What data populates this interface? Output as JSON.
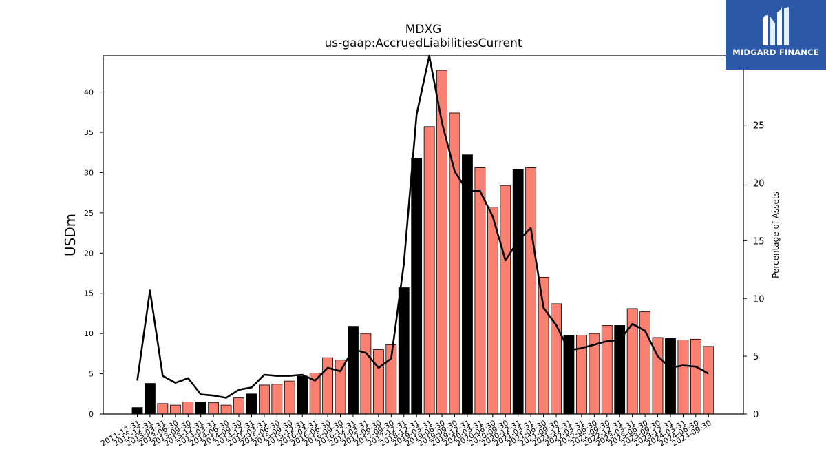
{
  "logo": {
    "text": "MIDGARD FINANCE",
    "icon": "midgard-logo-icon",
    "background": "#2c5aa8"
  },
  "chart_data": {
    "type": "bar",
    "title": "MDXG",
    "subtitle": "us-gaap:AccruedLiabilitiesCurrent",
    "ylabel": "USDm",
    "y2label": "Percentage of Assets",
    "ylim": [
      0,
      44.5
    ],
    "y2lim": [
      0,
      31
    ],
    "yticks": [
      0,
      5,
      10,
      15,
      20,
      25,
      30,
      35,
      40
    ],
    "y2ticks": [
      0,
      5,
      10,
      15,
      20,
      25
    ],
    "categories": [
      "2011-12-31",
      "2012-12-31",
      "2013-03-31",
      "2013-06-30",
      "2013-09-30",
      "2013-12-31",
      "2014-03-31",
      "2014-06-30",
      "2014-09-30",
      "2014-12-31",
      "2015-03-31",
      "2015-06-30",
      "2015-09-30",
      "2015-12-31",
      "2016-03-31",
      "2016-06-30",
      "2016-09-30",
      "2016-12-31",
      "2017-03-31",
      "2017-06-30",
      "2017-09-30",
      "2017-12-31",
      "2018-12-31",
      "2019-03-31",
      "2019-06-30",
      "2019-09-30",
      "2019-12-31",
      "2020-03-31",
      "2020-06-30",
      "2020-09-30",
      "2020-12-31",
      "2021-03-31",
      "2021-06-30",
      "2021-09-30",
      "2021-12-31",
      "2022-03-31",
      "2022-06-30",
      "2022-09-30",
      "2022-12-31",
      "2023-03-31",
      "2023-06-30",
      "2023-09-30",
      "2023-12-31",
      "2024-03-31",
      "2024-06-30",
      "2024-09-30"
    ],
    "series": [
      {
        "values": [
          0.8,
          3.8,
          1.3,
          1.1,
          1.5,
          1.5,
          1.4,
          1.1,
          2.0,
          2.5,
          3.6,
          3.7,
          4.1,
          4.7,
          5.1,
          7.0,
          6.7,
          10.9,
          10.0,
          8.0,
          8.6,
          15.7,
          31.8,
          35.7,
          42.7,
          37.4,
          32.2,
          30.6,
          25.7,
          28.4,
          30.4,
          30.6,
          17.0,
          13.7,
          9.8,
          9.8,
          10.0,
          11.0,
          11.0,
          13.1,
          12.7,
          9.5,
          9.4,
          9.2,
          9.3,
          8.4
        ]
      },
      {
        "axis": "right",
        "values": [
          2.9,
          10.7,
          3.3,
          2.7,
          3.1,
          1.7,
          1.6,
          1.4,
          2.1,
          2.3,
          3.4,
          3.3,
          3.3,
          3.4,
          2.9,
          4.0,
          3.7,
          5.6,
          5.3,
          4.0,
          4.8,
          13.0,
          25.9,
          31.0,
          25.2,
          21.0,
          19.3,
          19.3,
          17.1,
          13.3,
          15.0,
          16.1,
          9.2,
          7.7,
          5.5,
          5.7,
          6.0,
          6.3,
          6.4,
          7.8,
          7.2,
          5.0,
          4.0,
          4.2,
          4.1,
          3.5
        ]
      }
    ],
    "bar_kinds": [
      "k",
      "k",
      "s",
      "s",
      "s",
      "k",
      "s",
      "s",
      "s",
      "k",
      "s",
      "s",
      "s",
      "k",
      "s",
      "s",
      "s",
      "k",
      "s",
      "s",
      "s",
      "k",
      "k",
      "s",
      "s",
      "s",
      "k",
      "s",
      "s",
      "s",
      "k",
      "s",
      "s",
      "s",
      "k",
      "s",
      "s",
      "s",
      "k",
      "s",
      "s",
      "s",
      "k",
      "s",
      "s",
      "s"
    ],
    "colors": {
      "annual": "#000000",
      "quarterly": "#fa8072",
      "line": "#000000"
    },
    "grid": false
  }
}
